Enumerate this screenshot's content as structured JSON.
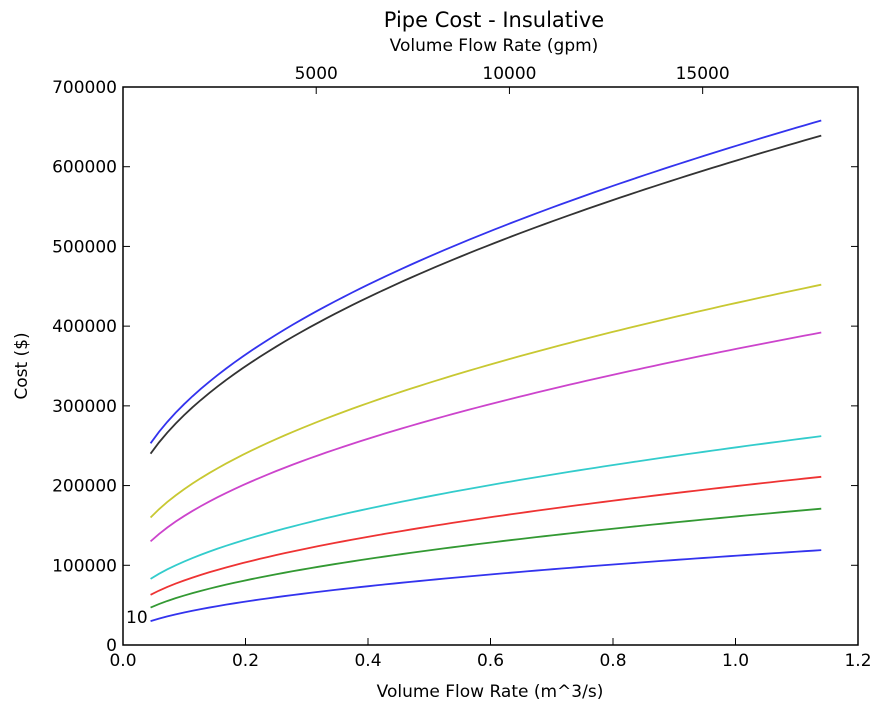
{
  "chart_data": {
    "type": "line",
    "title": "Pipe Cost - Insulative",
    "xlabel": "Volume Flow Rate (m^3/s)",
    "ylabel": "Cost ($)",
    "x2label": "Volume Flow Rate (gpm)",
    "xlim": [
      0.0,
      1.2
    ],
    "ylim": [
      0,
      700000
    ],
    "x2lim": [
      0,
      19020
    ],
    "xticks": [
      "0.0",
      "0.2",
      "0.4",
      "0.6",
      "0.8",
      "1.0",
      "1.2"
    ],
    "yticks": [
      "0",
      "100000",
      "200000",
      "300000",
      "400000",
      "500000",
      "600000",
      "700000"
    ],
    "x2ticks": [
      "5000",
      "10000",
      "15000"
    ],
    "x2tick_values": [
      5000,
      10000,
      15000
    ],
    "grid": false,
    "annotations": [
      {
        "text": "10",
        "x": 0.01,
        "y": 30000
      }
    ],
    "series": [
      {
        "color": "#3333ee",
        "y_start": 253000,
        "y_end": 658000
      },
      {
        "color": "#333333",
        "y_start": 240000,
        "y_end": 639000
      },
      {
        "color": "#c8c832",
        "y_start": 160000,
        "y_end": 452000
      },
      {
        "color": "#cc44cc",
        "y_start": 130000,
        "y_end": 392000
      },
      {
        "color": "#33cccc",
        "y_start": 83000,
        "y_end": 262000
      },
      {
        "color": "#ee3333",
        "y_start": 63000,
        "y_end": 211000
      },
      {
        "color": "#339933",
        "y_start": 47000,
        "y_end": 171000
      },
      {
        "color": "#3333ee",
        "y_start": 30000,
        "y_end": 119000
      }
    ],
    "x_start": 0.045,
    "x_end": 1.14
  }
}
